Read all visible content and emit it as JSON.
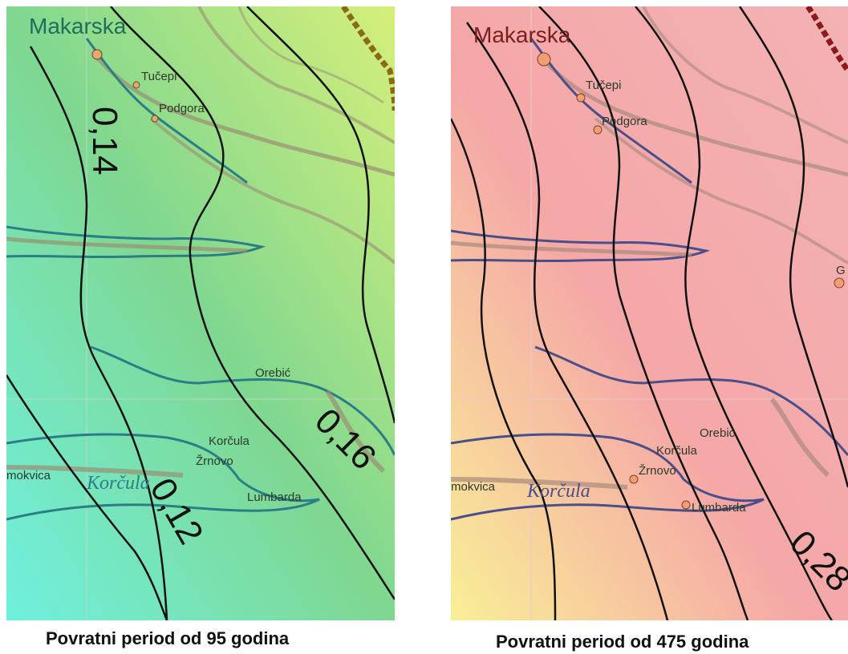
{
  "maps": [
    {
      "caption": "Povratni period od 95 godina",
      "colors": {
        "bg_start": "#6ff0df",
        "bg_mid": "#7fd790",
        "bg_end": "#d6ef7a",
        "coast": "#2d7d86",
        "road": "#9a8e73",
        "border": "#8a6a17"
      },
      "places": {
        "makarska": "Makarska",
        "tucepi": "Tučepi",
        "podgora": "Podgora",
        "orebic": "Orebić",
        "korcula": "Korčula",
        "zrnovo": "Žrnovo",
        "lumbarda": "Lumbarda",
        "smokvica": "mokvica",
        "island": "Korčula"
      },
      "contours": [
        {
          "label": "0,14",
          "value": 0.14
        },
        {
          "label": "0,16",
          "value": 0.16
        },
        {
          "label": "0,12",
          "value": 0.12
        }
      ]
    },
    {
      "caption": "Povratni period od 475 godina",
      "colors": {
        "bg_start": "#f9ef96",
        "bg_mid": "#f5a7a7",
        "bg_end": "#f4b2b4",
        "coast": "#4a4f8a",
        "road": "#a98a7c",
        "border": "#8b1a1a"
      },
      "places": {
        "makarska": "Makarska",
        "tucepi": "Tučepi",
        "podgora": "Podgora",
        "orebic": "Orebić",
        "korcula": "Korčula",
        "zrnovo": "Žrnovo",
        "lumbarda": "Lumbarda",
        "smokvica": "mokvica",
        "island": "Korčula",
        "edge": "G"
      },
      "contours": [
        {
          "label": "0,28",
          "value": 0.28
        }
      ]
    }
  ]
}
